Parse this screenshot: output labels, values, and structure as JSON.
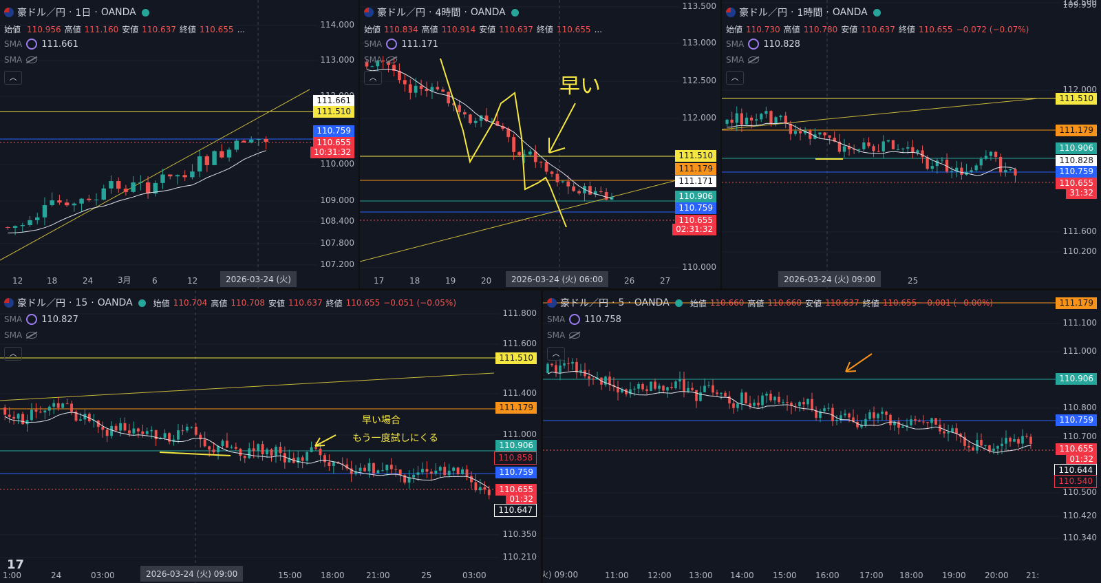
{
  "common": {
    "symbol": "豪ドル／円",
    "broker": "OANDA",
    "sma_label": "SMA",
    "labels": {
      "open": "始値",
      "high": "高値",
      "low": "安値",
      "close": "終値"
    }
  },
  "colors": {
    "up": "#26a69a",
    "down": "#ef5350",
    "yellow": "#f5e642",
    "orange": "#f7931a",
    "green": "#26a69a",
    "blue": "#2962ff",
    "bg": "#131722"
  },
  "chart_data": [
    {
      "type": "candlestick",
      "timeframe": "1日",
      "ohlc": {
        "open": "110.956",
        "high": "111.160",
        "low": "110.637",
        "close": "110.655",
        "more": "..."
      },
      "sma_value": "111.661",
      "y_ticks": [
        "114.000",
        "113.000",
        "112.000",
        "110.000",
        "109.000",
        "108.400",
        "107.800",
        "107.200"
      ],
      "x_ticks": [
        "12",
        "18",
        "24",
        "3月",
        "6",
        "12"
      ],
      "crosshair_label": "2026-03-24 (火)",
      "price_tags": [
        {
          "text": "111.661",
          "kind": "white"
        },
        {
          "text": "111.510",
          "kind": "yellow"
        },
        {
          "text": "110.759",
          "kind": "blue"
        },
        {
          "text": "110.655",
          "kind": "red"
        },
        {
          "text": "10:31:32",
          "kind": "red"
        }
      ]
    },
    {
      "type": "candlestick",
      "timeframe": "4時間",
      "ohlc": {
        "open": "110.834",
        "high": "110.914",
        "low": "110.637",
        "close": "110.655",
        "more": "..."
      },
      "sma_value": "111.171",
      "y_ticks": [
        "113.500",
        "113.000",
        "112.500",
        "112.000",
        "110.000"
      ],
      "x_ticks": [
        "17",
        "18",
        "19",
        "20",
        "26",
        "27"
      ],
      "crosshair_label": "2026-03-24 (火)   06:00",
      "annotation": "早い",
      "price_tags": [
        {
          "text": "111.510",
          "kind": "yellow"
        },
        {
          "text": "111.179",
          "kind": "orange"
        },
        {
          "text": "111.171",
          "kind": "white"
        },
        {
          "text": "110.906",
          "kind": "green"
        },
        {
          "text": "110.759",
          "kind": "blue"
        },
        {
          "text": "110.655",
          "kind": "red"
        },
        {
          "text": "02:31:32",
          "kind": "red"
        }
      ]
    },
    {
      "type": "candlestick",
      "timeframe": "1時間",
      "ohlc": {
        "open": "110.730",
        "high": "110.780",
        "low": "110.637",
        "close": "110.655",
        "change": "−0.072 (−0.07%)"
      },
      "sma_value": "110.828",
      "y_ticks": [
        "112.500",
        "112.000",
        "111.600",
        "110.200",
        "109.950"
      ],
      "x_ticks": [
        "25"
      ],
      "crosshair_label": "2026-03-24 (火)   09:00",
      "price_tags": [
        {
          "text": "111.510",
          "kind": "yellow"
        },
        {
          "text": "111.179",
          "kind": "orange"
        },
        {
          "text": "110.906",
          "kind": "green"
        },
        {
          "text": "110.828",
          "kind": "white"
        },
        {
          "text": "110.759",
          "kind": "blue"
        },
        {
          "text": "110.655",
          "kind": "red"
        },
        {
          "text": "31:32",
          "kind": "red"
        }
      ]
    },
    {
      "type": "candlestick",
      "timeframe": "15",
      "ohlc": {
        "open": "110.704",
        "high": "110.708",
        "low": "110.637",
        "close": "110.655",
        "change": "−0.051 (−0.05%)"
      },
      "sma_value": "110.827",
      "y_ticks": [
        "111.800",
        "111.600",
        "111.400",
        "111.000",
        "110.350",
        "110.210"
      ],
      "x_ticks": [
        "1:00",
        "24",
        "03:00",
        "09:00",
        "15:00",
        "18:00",
        "21:00",
        "25",
        "03:00"
      ],
      "crosshair_label": "2026-03-24 (火)   09:00",
      "annotation_lines": [
        "早い場合",
        "もう一度試しにくる"
      ],
      "price_tags": [
        {
          "text": "111.510",
          "kind": "yellow"
        },
        {
          "text": "111.179",
          "kind": "orange"
        },
        {
          "text": "110.906",
          "kind": "green"
        },
        {
          "text": "110.858",
          "kind": "darkred"
        },
        {
          "text": "110.759",
          "kind": "blue"
        },
        {
          "text": "110.655",
          "kind": "red"
        },
        {
          "text": "01:32",
          "kind": "red"
        },
        {
          "text": "110.647",
          "kind": "black"
        }
      ]
    },
    {
      "type": "candlestick",
      "timeframe": "5",
      "ohlc": {
        "open": "110.660",
        "high": "110.660",
        "low": "110.637",
        "close": "110.655",
        "change": "−0.001 (−0.00%)"
      },
      "sma_value": "110.758",
      "y_ticks": [
        "111.100",
        "111.000",
        "110.800",
        "110.700",
        "110.500",
        "110.420",
        "110.340"
      ],
      "x_ticks": [
        "火) 09:00",
        "11:00",
        "12:00",
        "13:00",
        "14:00",
        "15:00",
        "16:00",
        "17:00",
        "18:00",
        "19:00",
        "20:00",
        "21:"
      ],
      "price_tags": [
        {
          "text": "111.179",
          "kind": "orange"
        },
        {
          "text": "110.906",
          "kind": "green"
        },
        {
          "text": "110.759",
          "kind": "blue"
        },
        {
          "text": "110.655",
          "kind": "red"
        },
        {
          "text": "01:32",
          "kind": "red"
        },
        {
          "text": "110.644",
          "kind": "black"
        },
        {
          "text": "110.540",
          "kind": "darkred"
        }
      ]
    }
  ]
}
